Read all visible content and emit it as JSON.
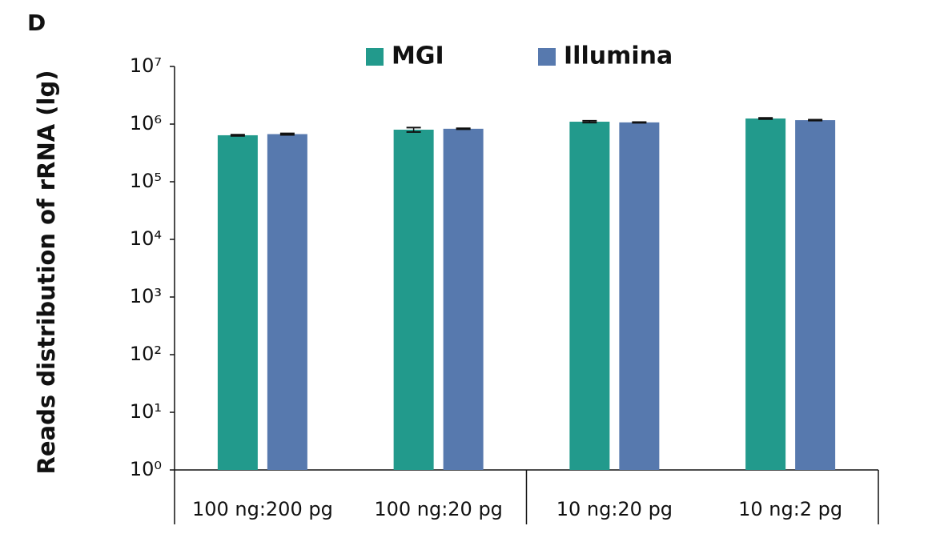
{
  "panel_label": "D",
  "chart_data": {
    "type": "bar",
    "ylabel": "Reads distribution of rRNA (lg)",
    "categories": [
      "100 ng:200 pg",
      "100 ng:20 pg",
      "10 ng:20 pg",
      "10 ng:2 pg"
    ],
    "series": [
      {
        "name": "MGI",
        "color": "#229a8c",
        "values": [
          640000,
          800000,
          1100000,
          1250000
        ],
        "errors": [
          15000,
          70000,
          40000,
          30000
        ]
      },
      {
        "name": "Illumina",
        "color": "#5779ae",
        "values": [
          670000,
          830000,
          1070000,
          1170000
        ],
        "errors": [
          20000,
          15000,
          15000,
          20000
        ]
      }
    ],
    "log_scale": true,
    "ylim": [
      1,
      10000000
    ],
    "yticks": [
      {
        "value": 1,
        "label": "10⁰"
      },
      {
        "value": 10,
        "label": "10¹"
      },
      {
        "value": 100,
        "label": "10²"
      },
      {
        "value": 1000,
        "label": "10³"
      },
      {
        "value": 10000,
        "label": "10⁴"
      },
      {
        "value": 100000,
        "label": "10⁵"
      },
      {
        "value": 1000000,
        "label": "10⁶"
      },
      {
        "value": 10000000,
        "label": "10⁷"
      }
    ],
    "legend": "top"
  }
}
